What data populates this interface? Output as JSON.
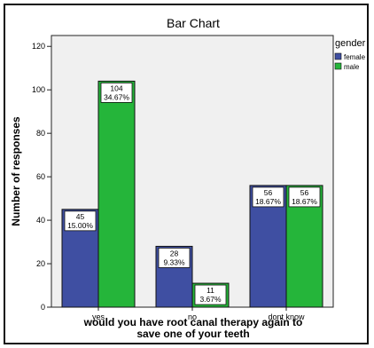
{
  "chart_data": {
    "type": "bar",
    "title": "Bar Chart",
    "xlabel": "would you have root canal therapy again to save one of your teeth",
    "ylabel": "Number of responses",
    "categories": [
      "yes",
      "no",
      "dont know"
    ],
    "series": [
      {
        "name": "female",
        "color": "#3f4fa2",
        "values": [
          45,
          28,
          56
        ],
        "labels": [
          "15.00%",
          "9.33%",
          "18.67%"
        ]
      },
      {
        "name": "male",
        "color": "#25b53a",
        "values": [
          104,
          11,
          56
        ],
        "labels": [
          "34.67%",
          "3.67%",
          "18.67%"
        ]
      }
    ],
    "ylim": [
      0,
      125
    ],
    "yticks": [
      0,
      20,
      40,
      60,
      80,
      100,
      120
    ],
    "legend_title": "gender",
    "legend_position": "right",
    "plot_background": "#f0f0f0",
    "grid": false
  }
}
